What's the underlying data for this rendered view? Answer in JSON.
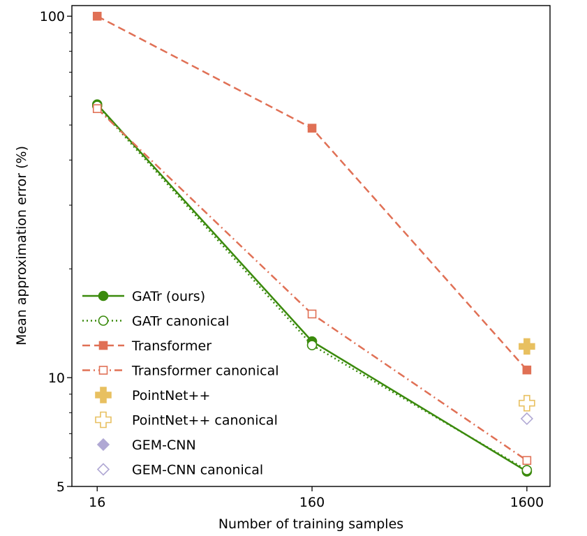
{
  "chart_data": {
    "type": "line",
    "title": "",
    "xlabel": "Number of training samples",
    "ylabel": "Mean approximation error (%)",
    "x_scale": "log",
    "y_scale": "log",
    "xlim": [
      12.2,
      2050
    ],
    "ylim": [
      5,
      107
    ],
    "x_ticks": [
      16,
      160,
      1600
    ],
    "x_tick_labels": [
      "16",
      "160",
      "1600"
    ],
    "y_ticks": [
      5,
      10,
      100
    ],
    "y_tick_labels": [
      "5",
      "10",
      "100"
    ],
    "grid": false,
    "legend_position": "lower-left",
    "series": [
      {
        "name": "GATr (ours)",
        "color": "#3a8a0c",
        "line_style": "solid",
        "marker": "circle",
        "filled": true,
        "x": [
          16,
          160,
          1600
        ],
        "y": [
          57.0,
          12.6,
          5.5
        ]
      },
      {
        "name": "GATr canonical",
        "color": "#3a8a0c",
        "line_style": "dotted",
        "marker": "circle",
        "filled": false,
        "x": [
          16,
          160,
          1600
        ],
        "y": [
          56.5,
          12.3,
          5.55
        ]
      },
      {
        "name": "Transformer",
        "color": "#e07055",
        "line_style": "dashed",
        "marker": "square",
        "filled": true,
        "x": [
          16,
          160,
          1600
        ],
        "y": [
          100.0,
          49.0,
          10.5
        ]
      },
      {
        "name": "Transformer canonical",
        "color": "#e07055",
        "line_style": "dashdot",
        "marker": "square",
        "filled": false,
        "x": [
          16,
          160,
          1600
        ],
        "y": [
          55.5,
          15.0,
          5.9
        ]
      },
      {
        "name": "PointNet++",
        "color": "#e8c060",
        "line_style": "none",
        "marker": "plus",
        "filled": true,
        "x": [
          1600
        ],
        "y": [
          12.2
        ]
      },
      {
        "name": "PointNet++ canonical",
        "color": "#e8c060",
        "line_style": "none",
        "marker": "plus",
        "filled": false,
        "x": [
          1600
        ],
        "y": [
          8.5
        ]
      },
      {
        "name": "GEM-CNN",
        "color": "#b0a8d4",
        "line_style": "none",
        "marker": "diamond",
        "filled": true,
        "x": [],
        "y": []
      },
      {
        "name": "GEM-CNN canonical",
        "color": "#b0a8d4",
        "line_style": "none",
        "marker": "diamond",
        "filled": false,
        "x": [
          1600
        ],
        "y": [
          7.7
        ]
      }
    ]
  }
}
